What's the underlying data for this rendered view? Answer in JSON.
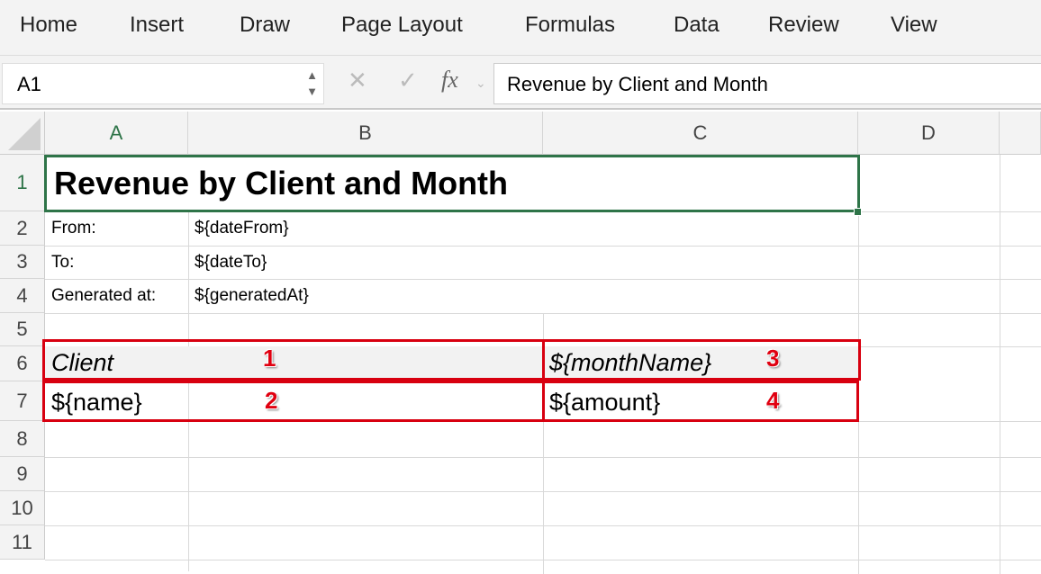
{
  "ribbon": {
    "tabs": [
      "Home",
      "Insert",
      "Draw",
      "Page Layout",
      "Formulas",
      "Data",
      "Review",
      "View"
    ]
  },
  "formula_bar": {
    "name_box": "A1",
    "formula": "Revenue by Client and Month",
    "cancel_icon": "x-icon",
    "enter_icon": "check-icon",
    "fx_label": "fx"
  },
  "columns": [
    "A",
    "B",
    "C",
    "D"
  ],
  "rows": [
    "1",
    "2",
    "3",
    "4",
    "5",
    "6",
    "7",
    "8",
    "9",
    "10",
    "11"
  ],
  "cells": {
    "A1": "Revenue by Client and Month",
    "A2": "From:",
    "B2": "${dateFrom}",
    "A3": "To:",
    "B3": "${dateTo}",
    "A4": "Generated at:",
    "B4": "${generatedAt}",
    "A6": "Client",
    "C6": "${monthName}",
    "A7": "${name}",
    "C7": "${amount}"
  },
  "annotations": [
    "1",
    "2",
    "3",
    "4"
  ],
  "colors": {
    "selection": "#2e7448",
    "annotation": "#d80010",
    "header_fill": "#f2f2f2"
  }
}
